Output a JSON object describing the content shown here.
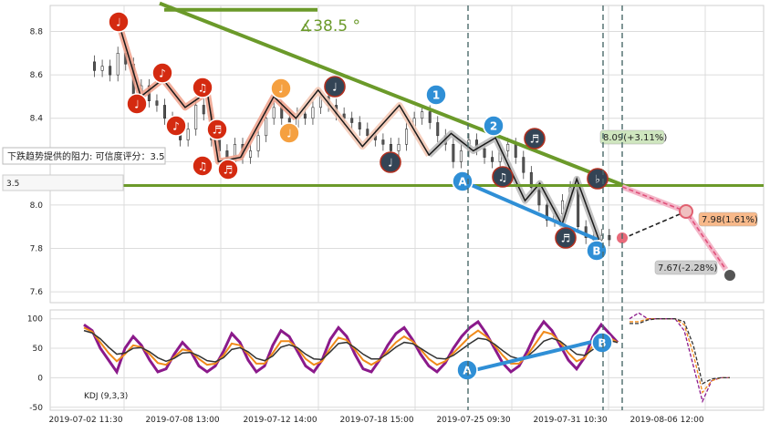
{
  "chart_data": [
    {
      "type": "candlestick",
      "ylim": [
        7.55,
        8.92
      ],
      "yticks": [
        "8.8",
        "8.6",
        "8.4",
        "8.2",
        "8.0",
        "7.8",
        "7.6"
      ],
      "ytick_values": [
        8.8,
        8.6,
        8.4,
        8.2,
        8.0,
        7.8,
        7.6
      ],
      "xticks": [
        "2019-07-02 11:30",
        "2019-07-08 13:00",
        "2019-07-12 14:00",
        "2019-07-18 15:00",
        "2019-07-25 09:30",
        "2019-07-31 10:30",
        "2019-08-06 12:00"
      ],
      "grid": true,
      "price_series": [
        [
          0,
          8.66
        ],
        [
          3,
          8.62
        ],
        [
          6,
          8.64
        ],
        [
          9,
          8.6
        ],
        [
          12,
          8.7
        ],
        [
          15,
          8.65
        ],
        [
          18,
          8.5
        ],
        [
          21,
          8.55
        ],
        [
          24,
          8.48
        ],
        [
          27,
          8.46
        ],
        [
          30,
          8.4
        ],
        [
          33,
          8.38
        ],
        [
          36,
          8.3
        ],
        [
          39,
          8.35
        ],
        [
          42,
          8.46
        ],
        [
          45,
          8.42
        ],
        [
          48,
          8.3
        ],
        [
          51,
          8.25
        ],
        [
          54,
          8.2
        ],
        [
          57,
          8.28
        ],
        [
          60,
          8.22
        ],
        [
          63,
          8.25
        ],
        [
          66,
          8.32
        ],
        [
          69,
          8.4
        ],
        [
          72,
          8.45
        ],
        [
          75,
          8.4
        ],
        [
          78,
          8.35
        ],
        [
          81,
          8.42
        ],
        [
          84,
          8.4
        ],
        [
          87,
          8.45
        ],
        [
          90,
          8.5
        ],
        [
          93,
          8.46
        ],
        [
          96,
          8.42
        ],
        [
          99,
          8.4
        ],
        [
          102,
          8.38
        ],
        [
          105,
          8.35
        ],
        [
          108,
          8.32
        ],
        [
          111,
          8.3
        ],
        [
          114,
          8.28
        ],
        [
          117,
          8.25
        ],
        [
          120,
          8.28
        ],
        [
          123,
          8.35
        ],
        [
          126,
          8.4
        ],
        [
          129,
          8.43
        ],
        [
          132,
          8.38
        ],
        [
          135,
          8.32
        ],
        [
          138,
          8.28
        ],
        [
          141,
          8.2
        ],
        [
          144,
          8.25
        ],
        [
          147,
          8.3
        ],
        [
          150,
          8.26
        ],
        [
          153,
          8.22
        ],
        [
          156,
          8.2
        ],
        [
          159,
          8.25
        ],
        [
          162,
          8.28
        ],
        [
          165,
          8.22
        ],
        [
          168,
          8.15
        ],
        [
          171,
          8.08
        ],
        [
          174,
          8.0
        ],
        [
          177,
          7.93
        ],
        [
          180,
          7.96
        ],
        [
          183,
          8.02
        ],
        [
          186,
          8.08
        ],
        [
          189,
          7.9
        ],
        [
          192,
          7.85
        ],
        [
          195,
          7.84
        ],
        [
          198,
          7.86
        ],
        [
          201,
          7.84
        ]
      ],
      "zigzag": [
        [
          0,
          8.84
        ],
        [
          6,
          8.5
        ],
        [
          12,
          8.58
        ],
        [
          18,
          8.45
        ],
        [
          24,
          8.52
        ],
        [
          27,
          8.2
        ],
        [
          33,
          8.22
        ],
        [
          42,
          8.5
        ],
        [
          48,
          8.4
        ],
        [
          54,
          8.53
        ],
        [
          66,
          8.27
        ],
        [
          76,
          8.46
        ],
        [
          84,
          8.23
        ],
        [
          90,
          8.33
        ],
        [
          96,
          8.25
        ],
        [
          102,
          8.31
        ],
        [
          110,
          8.02
        ],
        [
          114,
          8.1
        ],
        [
          120,
          7.91
        ],
        [
          124,
          8.12
        ],
        [
          130,
          7.84
        ]
      ],
      "wave_labels": [
        {
          "text": "♩",
          "x": 0,
          "y": 8.84,
          "kind": "red"
        },
        {
          "text": "♩",
          "x": 6,
          "y": 8.5,
          "kind": "red"
        },
        {
          "text": "♪",
          "x": 12,
          "y": 8.58,
          "kind": "red"
        },
        {
          "text": "♪",
          "x": 17,
          "y": 8.38,
          "kind": "red"
        },
        {
          "text": "♫",
          "x": 23,
          "y": 8.52,
          "kind": "red"
        },
        {
          "text": "♫",
          "x": 20,
          "y": 8.21,
          "kind": "red"
        },
        {
          "text": "♬",
          "x": 27,
          "y": 8.37,
          "kind": "red"
        },
        {
          "text": "♬",
          "x": 29,
          "y": 8.2,
          "kind": "red"
        },
        {
          "text": "♩",
          "x": 42,
          "y": 8.53,
          "kind": "orange"
        },
        {
          "text": "♩",
          "x": 47,
          "y": 8.34,
          "kind": "orange"
        },
        {
          "text": "♩",
          "x": 54,
          "y": 8.53,
          "kind": "dark"
        },
        {
          "text": "♩",
          "x": 72,
          "y": 8.21,
          "kind": "dark"
        },
        {
          "text": "1",
          "x": 83,
          "y": 8.51,
          "kind": "blue"
        },
        {
          "text": "A",
          "x": 89,
          "y": 8.11,
          "kind": "blue"
        },
        {
          "text": "2",
          "x": 95,
          "y": 8.38,
          "kind": "blue"
        },
        {
          "text": "♫",
          "x": 98,
          "y": 8.14,
          "kind": "dark"
        },
        {
          "text": "♬",
          "x": 106,
          "y": 8.3,
          "kind": "dark"
        },
        {
          "text": "♬",
          "x": 118,
          "y": 7.9,
          "kind": "dark"
        },
        {
          "text": "♭",
          "x": 122,
          "y": 8.13,
          "kind": "dark"
        },
        {
          "text": "B",
          "x": 122,
          "y": 7.8,
          "kind": "blue"
        }
      ],
      "resistance_label": "下跌趋势提供的阻力: 可信度评分：3.5",
      "score_label": "3.5",
      "angle_label": "∡38.5 °",
      "forecasts": [
        {
          "label": "8.09(+3.11%)",
          "color": "#cfe6bf"
        },
        {
          "label": "7.98(1.61%)",
          "color": "#f8b98a"
        },
        {
          "label": "7.67(-2.28%)",
          "color": "#cfcfcf"
        }
      ],
      "colors": {
        "trend": "#6b9a2a",
        "support": "#2f8fd6",
        "zigzag": "#1a1a1a",
        "bull": "#333333",
        "bear": "#555555"
      }
    },
    {
      "type": "line",
      "title": "KDJ (9,3,3)",
      "ylim": [
        -55,
        115
      ],
      "yticks": [
        "100",
        "50",
        "0",
        "-50"
      ],
      "ytick_values": [
        100,
        50,
        0,
        -50
      ],
      "series": [
        {
          "color": "#8b1a8b",
          "values": [
            90,
            80,
            50,
            30,
            10,
            50,
            70,
            55,
            30,
            10,
            15,
            40,
            60,
            45,
            20,
            10,
            20,
            45,
            75,
            60,
            30,
            10,
            20,
            55,
            80,
            70,
            45,
            20,
            10,
            30,
            65,
            85,
            70,
            40,
            15,
            10,
            30,
            55,
            75,
            85,
            65,
            40,
            20,
            10,
            25,
            50,
            70,
            85,
            95,
            75,
            50,
            25,
            10,
            20,
            45,
            75,
            95,
            80,
            55,
            30,
            15,
            35,
            70,
            90,
            75,
            60
          ]
        },
        {
          "color": "#f08a1a",
          "values": [
            85,
            78,
            60,
            42,
            28,
            40,
            55,
            52,
            40,
            25,
            22,
            35,
            48,
            45,
            32,
            22,
            24,
            38,
            58,
            55,
            40,
            24,
            24,
            42,
            62,
            62,
            50,
            32,
            22,
            28,
            50,
            68,
            64,
            48,
            30,
            22,
            30,
            45,
            60,
            70,
            62,
            48,
            32,
            22,
            28,
            42,
            56,
            70,
            80,
            70,
            55,
            38,
            24,
            24,
            38,
            58,
            78,
            74,
            60,
            42,
            28,
            34,
            55,
            72,
            68,
            60
          ]
        },
        {
          "color": "#333333",
          "values": [
            80,
            76,
            66,
            52,
            40,
            42,
            50,
            51,
            44,
            34,
            28,
            33,
            42,
            43,
            37,
            29,
            27,
            34,
            48,
            51,
            44,
            33,
            29,
            37,
            52,
            56,
            51,
            40,
            32,
            31,
            44,
            58,
            60,
            51,
            40,
            32,
            32,
            41,
            52,
            60,
            58,
            50,
            41,
            33,
            32,
            38,
            48,
            58,
            67,
            65,
            57,
            46,
            36,
            32,
            36,
            48,
            62,
            67,
            62,
            51,
            40,
            38,
            48,
            60,
            63,
            60
          ]
        }
      ],
      "kdj_labels": [
        {
          "text": "A"
        },
        {
          "text": "B"
        }
      ],
      "forecast_tail": [
        [
          100,
          110,
          100,
          100,
          100,
          100,
          80,
          20,
          -40,
          -5,
          0,
          0
        ],
        [
          95,
          95,
          100,
          100,
          100,
          100,
          90,
          40,
          -25,
          -5,
          0,
          0
        ],
        [
          92,
          92,
          98,
          100,
          100,
          100,
          95,
          55,
          -10,
          -2,
          0,
          0
        ]
      ]
    }
  ]
}
